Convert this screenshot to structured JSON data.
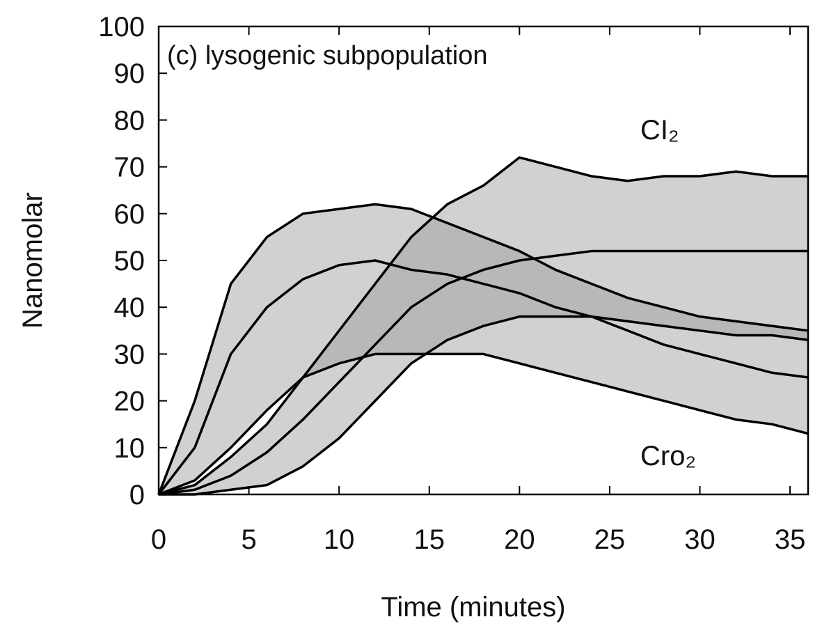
{
  "chart_data": {
    "type": "band",
    "annotation": "(c) lysogenic subpopulation",
    "xlabel": "Time (minutes)",
    "ylabel": "Nanomolar",
    "x": [
      0,
      2,
      4,
      6,
      8,
      10,
      12,
      14,
      16,
      18,
      20,
      22,
      24,
      26,
      28,
      30,
      32,
      34,
      36
    ],
    "series": [
      {
        "name": "Cro₂",
        "color": "#000000",
        "fill": "#9a9a9a",
        "upper": [
          0,
          20,
          45,
          55,
          60,
          61,
          62,
          61,
          58,
          55,
          52,
          48,
          45,
          42,
          40,
          38,
          37,
          36,
          35
        ],
        "values": [
          0,
          10,
          30,
          40,
          46,
          49,
          50,
          48,
          47,
          45,
          43,
          40,
          38,
          35,
          32,
          30,
          28,
          26,
          25
        ],
        "lower": [
          0,
          3,
          10,
          18,
          25,
          28,
          30,
          30,
          30,
          30,
          28,
          26,
          24,
          22,
          20,
          18,
          16,
          15,
          13
        ]
      },
      {
        "name": "CI₂",
        "color": "#000000",
        "fill": "#9a9a9a",
        "upper": [
          0,
          2,
          8,
          15,
          25,
          35,
          45,
          55,
          62,
          66,
          72,
          70,
          68,
          67,
          68,
          68,
          69,
          68,
          68
        ],
        "values": [
          0,
          1,
          4,
          9,
          16,
          24,
          32,
          40,
          45,
          48,
          50,
          51,
          52,
          52,
          52,
          52,
          52,
          52,
          52
        ],
        "lower": [
          0,
          0,
          1,
          2,
          6,
          12,
          20,
          28,
          33,
          36,
          38,
          38,
          38,
          37,
          36,
          35,
          34,
          34,
          33
        ]
      }
    ],
    "xlim": [
      0,
      36
    ],
    "xticks": [
      0,
      5,
      10,
      15,
      20,
      25,
      30,
      35
    ],
    "ylim": [
      0,
      100
    ],
    "yticks": [
      0,
      10,
      20,
      30,
      40,
      50,
      60,
      70,
      80,
      90,
      100
    ]
  }
}
